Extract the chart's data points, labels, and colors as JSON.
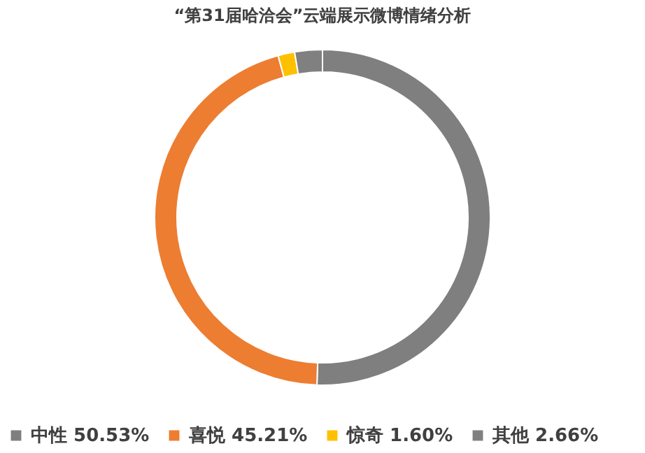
{
  "chart_data": {
    "type": "donut",
    "title": "“第31届哈洽会”云端展示微博情绪分析",
    "categories": [
      "中性",
      "喜悦",
      "惊奇",
      "其他"
    ],
    "values": [
      50.53,
      45.21,
      1.6,
      2.66
    ],
    "value_labels": [
      "50.53%",
      "45.21%",
      "1.60%",
      "2.66%"
    ],
    "colors": [
      "#7f7f7f",
      "#ed7d31",
      "#ffc000",
      "#808080"
    ],
    "legend": "bottom"
  }
}
